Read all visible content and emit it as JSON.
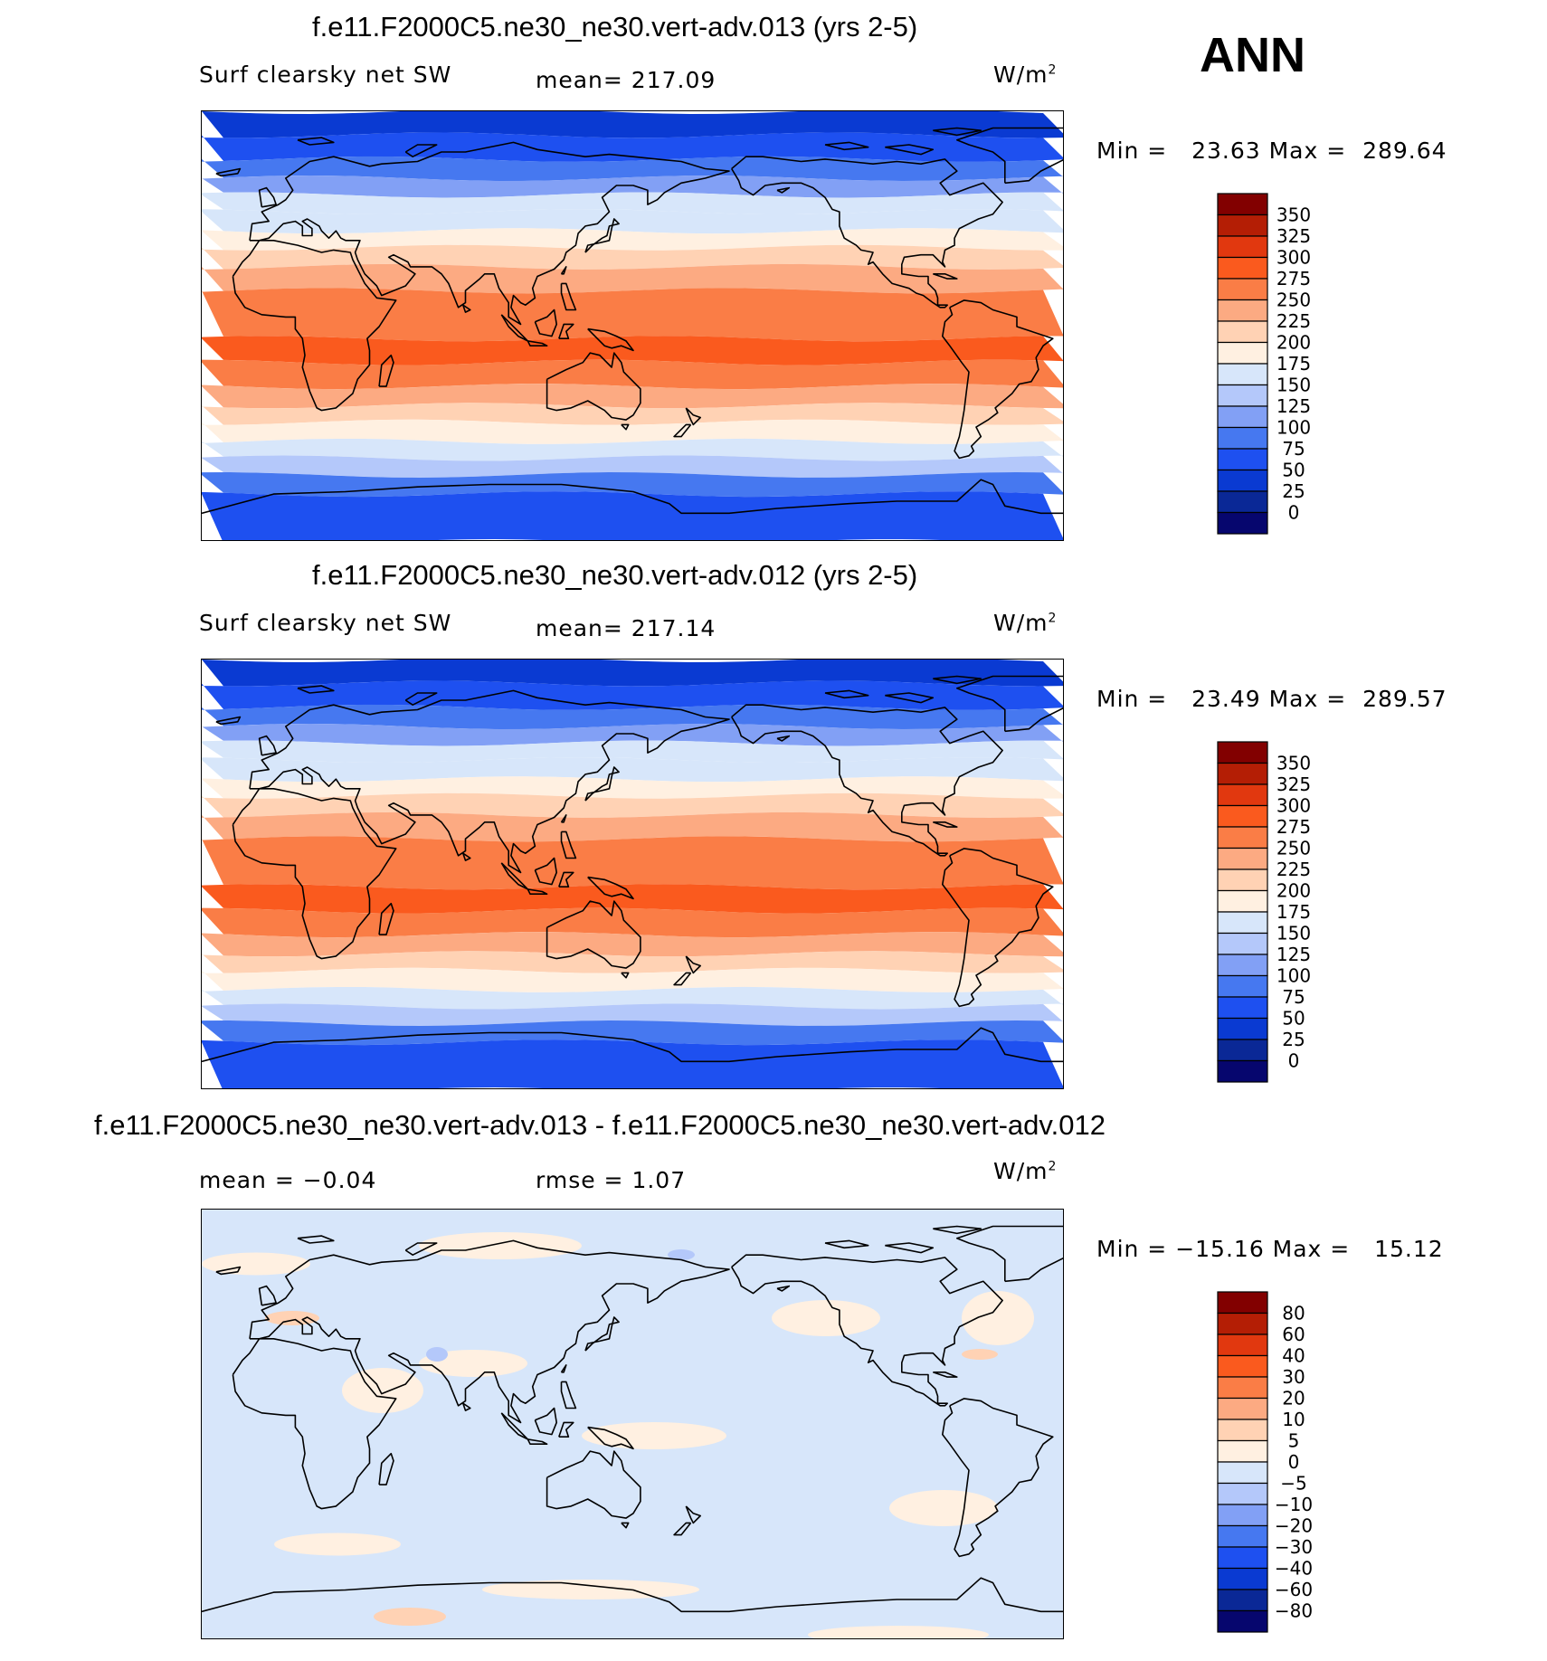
{
  "season": "ANN",
  "colors": {
    "abs": [
      "#06066e",
      "#0a2896",
      "#0a3ad2",
      "#1e50f0",
      "#4678f0",
      "#82a0f5",
      "#b4c8fa",
      "#d7e6fa",
      "#fff0e1",
      "#ffd2b4",
      "#fcaa82",
      "#fa7d46",
      "#fa5a1e",
      "#e1380f",
      "#b41e05",
      "#820000"
    ],
    "diff": [
      "#06066e",
      "#0a2896",
      "#0a3ad2",
      "#1e50f0",
      "#4678f0",
      "#82a0f5",
      "#b4c8fa",
      "#d7e6fa",
      "#fff0e1",
      "#ffd2b4",
      "#fcaa82",
      "#fa7d46",
      "#fa5a1e",
      "#e1380f",
      "#b41e05",
      "#820000"
    ],
    "coast": "#000000"
  },
  "panels": [
    {
      "title": "f.e11.F2000C5.ne30_ne30.vert-adv.013 (yrs 2-5)",
      "left_label": "Surf clearsky net SW",
      "stat_label": "mean= 217.09",
      "units": "W/m",
      "units_sup": "2",
      "minmax": "Min =   23.63 Max =  289.64",
      "levels": [
        "350",
        "325",
        "300",
        "275",
        "250",
        "225",
        "200",
        "175",
        "150",
        "125",
        "100",
        "75",
        "50",
        "25",
        "0"
      ]
    },
    {
      "title": "f.e11.F2000C5.ne30_ne30.vert-adv.012 (yrs 2-5)",
      "left_label": "Surf clearsky net SW",
      "stat_label": "mean= 217.14",
      "units": "W/m",
      "units_sup": "2",
      "minmax": "Min =   23.49 Max =  289.57",
      "levels": [
        "350",
        "325",
        "300",
        "275",
        "250",
        "225",
        "200",
        "175",
        "150",
        "125",
        "100",
        "75",
        "50",
        "25",
        "0"
      ]
    },
    {
      "title": "f.e11.F2000C5.ne30_ne30.vert-adv.013 - f.e11.F2000C5.ne30_ne30.vert-adv.012",
      "left_label": "mean =   −0.04",
      "stat_label": "rmse =    1.07",
      "units": "W/m",
      "units_sup": "2",
      "minmax": "Min = −15.16 Max =   15.12",
      "levels": [
        "80",
        "60",
        "40",
        "30",
        "20",
        "10",
        "5",
        "0",
        "−5",
        "−10",
        "−20",
        "−30",
        "−40",
        "−60",
        "−80"
      ]
    }
  ],
  "chart_data": [
    {
      "type": "heatmap",
      "title": "f.e11.F2000C5.ne30_ne30.vert-adv.013 (yrs 2-5)",
      "variable": "Surf clearsky net SW",
      "units": "W/m2",
      "mean": 217.09,
      "min": 23.63,
      "max": 289.64,
      "levels": [
        0,
        25,
        50,
        75,
        100,
        125,
        150,
        175,
        200,
        225,
        250,
        275,
        300,
        325,
        350
      ],
      "zonal_bands_lat": [
        90,
        80,
        70,
        62,
        55,
        48,
        40,
        33,
        25,
        15,
        -5,
        -15,
        -25,
        -33,
        -40,
        -48,
        -55,
        -62,
        -70,
        -90
      ],
      "zonal_band_values": [
        40,
        60,
        90,
        120,
        150,
        170,
        190,
        215,
        240,
        265,
        280,
        265,
        240,
        215,
        195,
        170,
        140,
        90,
        50
      ]
    },
    {
      "type": "heatmap",
      "title": "f.e11.F2000C5.ne30_ne30.vert-adv.012 (yrs 2-5)",
      "variable": "Surf clearsky net SW",
      "units": "W/m2",
      "mean": 217.14,
      "min": 23.49,
      "max": 289.57,
      "levels": [
        0,
        25,
        50,
        75,
        100,
        125,
        150,
        175,
        200,
        225,
        250,
        275,
        300,
        325,
        350
      ],
      "zonal_bands_lat": [
        90,
        80,
        70,
        62,
        55,
        48,
        40,
        33,
        25,
        15,
        -5,
        -15,
        -25,
        -33,
        -40,
        -48,
        -55,
        -62,
        -70,
        -90
      ],
      "zonal_band_values": [
        40,
        60,
        90,
        120,
        150,
        170,
        190,
        215,
        240,
        265,
        280,
        265,
        240,
        215,
        195,
        170,
        140,
        90,
        50
      ]
    },
    {
      "type": "heatmap",
      "title": "f.e11.F2000C5.ne30_ne30.vert-adv.013 - f.e11.F2000C5.ne30_ne30.vert-adv.012",
      "units": "W/m2",
      "mean": -0.04,
      "rmse": 1.07,
      "min": -15.16,
      "max": 15.12,
      "levels": [
        -80,
        -60,
        -40,
        -30,
        -20,
        -10,
        -5,
        0,
        5,
        10,
        20,
        30,
        40,
        60,
        80
      ]
    }
  ]
}
